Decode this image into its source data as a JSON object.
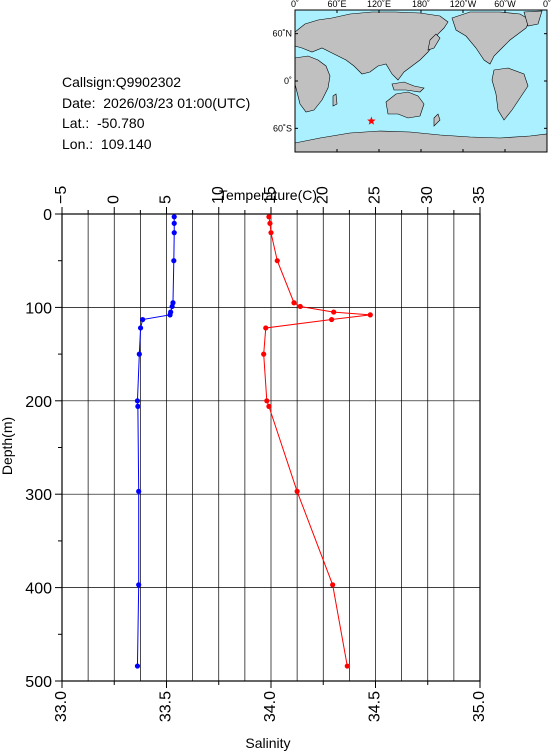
{
  "station": {
    "callsign": "Callsign:Q9902302",
    "date": "Date:  2026/03/23 01:00(UTC)",
    "lat": "Lat.:  -50.780",
    "lon": "Lon.:  109.140"
  },
  "map": {
    "lon_labels": [
      "0˚",
      "60˚E",
      "120˚E",
      "180˚",
      "120˚W",
      "60˚W",
      "0˚"
    ],
    "lat_labels": [
      "60˚N",
      "0˚",
      "60˚S"
    ],
    "ocean_color": "#aaf0ff",
    "land_color": "#c0c0c0",
    "marker_color": "#ff0000",
    "marker_lon": 109.14,
    "marker_lat": -50.78
  },
  "chart_data": {
    "type": "line",
    "top_axis_label": "Temperature(C)",
    "bottom_axis_label": "Salinity",
    "left_axis_label": "Depth(m)",
    "temperature_range": [
      -5,
      35
    ],
    "temperature_ticks": [
      "−5",
      "0",
      "5",
      "10",
      "15",
      "20",
      "25",
      "30",
      "35"
    ],
    "salinity_range": [
      33.0,
      35.0
    ],
    "salinity_ticks": [
      "33.0",
      "33.5",
      "34.0",
      "34.5",
      "35.0"
    ],
    "depth_range": [
      0,
      500
    ],
    "depth_ticks": [
      "0",
      "100",
      "200",
      "300",
      "400",
      "500"
    ],
    "grid": true,
    "series": [
      {
        "axis": "temperature",
        "color": "#ff0000",
        "points": [
          {
            "depth": 3,
            "value": 14.8
          },
          {
            "depth": 10,
            "value": 14.9
          },
          {
            "depth": 20,
            "value": 15.0
          },
          {
            "depth": 50,
            "value": 15.6
          },
          {
            "depth": 95,
            "value": 17.2
          },
          {
            "depth": 99,
            "value": 17.8
          },
          {
            "depth": 105,
            "value": 21.0
          },
          {
            "depth": 108,
            "value": 24.5
          },
          {
            "depth": 113,
            "value": 20.8
          },
          {
            "depth": 122,
            "value": 14.5
          },
          {
            "depth": 150,
            "value": 14.3
          },
          {
            "depth": 200,
            "value": 14.6
          },
          {
            "depth": 206,
            "value": 14.8
          },
          {
            "depth": 297,
            "value": 17.5
          },
          {
            "depth": 397,
            "value": 20.9
          },
          {
            "depth": 484,
            "value": 22.3
          }
        ]
      },
      {
        "axis": "salinity",
        "color": "#0000ff",
        "points": [
          {
            "depth": 3,
            "value": 33.537
          },
          {
            "depth": 10,
            "value": 33.537
          },
          {
            "depth": 20,
            "value": 33.537
          },
          {
            "depth": 50,
            "value": 33.535
          },
          {
            "depth": 95,
            "value": 33.531
          },
          {
            "depth": 99,
            "value": 33.527
          },
          {
            "depth": 105,
            "value": 33.52
          },
          {
            "depth": 108,
            "value": 33.517
          },
          {
            "depth": 113,
            "value": 33.386
          },
          {
            "depth": 122,
            "value": 33.376
          },
          {
            "depth": 150,
            "value": 33.37
          },
          {
            "depth": 200,
            "value": 33.361
          },
          {
            "depth": 206,
            "value": 33.363
          },
          {
            "depth": 297,
            "value": 33.367
          },
          {
            "depth": 397,
            "value": 33.367
          },
          {
            "depth": 484,
            "value": 33.361
          }
        ]
      }
    ]
  }
}
